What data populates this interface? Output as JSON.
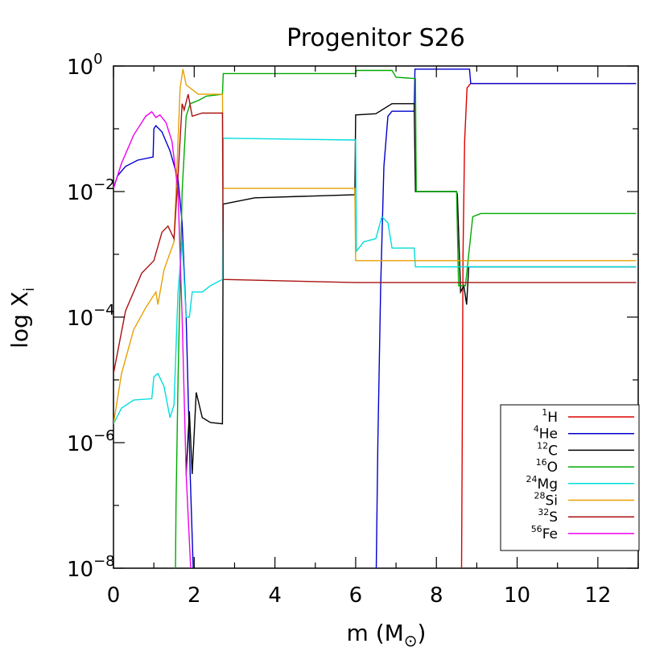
{
  "chart_data": {
    "type": "line",
    "title": "Progenitor S26",
    "xlabel": {
      "prefix": "m (M",
      "sub": "⊙",
      "suffix": ")"
    },
    "ylabel": {
      "base": "log X",
      "sub": "i"
    },
    "xlim": [
      0,
      13.0
    ],
    "ylim_log10": [
      -8,
      0
    ],
    "x_ticks": [
      0,
      2,
      4,
      6,
      8,
      10,
      12
    ],
    "x_tick_labels": [
      "0",
      "2",
      "4",
      "6",
      "8",
      "10",
      "12"
    ],
    "y_ticks_log10": [
      0,
      -2,
      -4,
      -6,
      -8
    ],
    "y_tick_labels": [
      {
        "base": "10",
        "exp": "0"
      },
      {
        "base": "10",
        "exp": "−2"
      },
      {
        "base": "10",
        "exp": "−4"
      },
      {
        "base": "10",
        "exp": "−6"
      },
      {
        "base": "10",
        "exp": "−8"
      }
    ],
    "legend_position": "bottom-right",
    "series": [
      {
        "name": "1H",
        "mass": "1",
        "element": "H",
        "color": "#dd0000",
        "points": [
          [
            8.62,
            -8.5
          ],
          [
            8.64,
            -6.0
          ],
          [
            8.66,
            -3.0
          ],
          [
            8.7,
            -1.2
          ],
          [
            8.76,
            -0.35
          ],
          [
            8.82,
            -0.3
          ],
          [
            8.85,
            -0.28
          ],
          [
            12.95,
            -0.28
          ]
        ]
      },
      {
        "name": "4He",
        "mass": "4",
        "element": "He",
        "color": "#0000cc",
        "points": [
          [
            0,
            -1.95
          ],
          [
            0.1,
            -1.75
          ],
          [
            0.3,
            -1.6
          ],
          [
            0.6,
            -1.5
          ],
          [
            0.98,
            -1.45
          ],
          [
            1.0,
            -1.0
          ],
          [
            1.05,
            -0.95
          ],
          [
            1.2,
            -1.05
          ],
          [
            1.4,
            -1.35
          ],
          [
            1.6,
            -1.8
          ],
          [
            1.7,
            -2.5
          ],
          [
            1.8,
            -4.0
          ],
          [
            1.9,
            -6.5
          ],
          [
            2.0,
            -8.5
          ],
          [
            6.5,
            -8.5
          ],
          [
            6.55,
            -6.0
          ],
          [
            6.62,
            -3.5
          ],
          [
            6.7,
            -1.6
          ],
          [
            6.8,
            -0.8
          ],
          [
            6.9,
            -0.72
          ],
          [
            7.45,
            -0.72
          ],
          [
            7.47,
            -0.05
          ],
          [
            8.82,
            -0.05
          ],
          [
            8.85,
            -0.28
          ],
          [
            12.95,
            -0.28
          ]
        ]
      },
      {
        "name": "12C",
        "mass": "12",
        "element": "C",
        "color": "#000000",
        "points": [
          [
            1.8,
            -6.5
          ],
          [
            1.88,
            -5.5
          ],
          [
            1.95,
            -6.5
          ],
          [
            2.05,
            -5.2
          ],
          [
            2.2,
            -5.6
          ],
          [
            2.4,
            -5.68
          ],
          [
            2.7,
            -5.7
          ],
          [
            2.72,
            -2.2
          ],
          [
            3.5,
            -2.1
          ],
          [
            5.98,
            -2.05
          ],
          [
            6.0,
            -0.78
          ],
          [
            6.5,
            -0.76
          ],
          [
            6.9,
            -0.6
          ],
          [
            7.45,
            -0.6
          ],
          [
            7.48,
            -2.0
          ],
          [
            8.5,
            -2.0
          ],
          [
            8.52,
            -2.05
          ],
          [
            8.6,
            -3.6
          ],
          [
            8.68,
            -3.5
          ],
          [
            8.75,
            -3.8
          ],
          [
            8.8,
            -3.2
          ],
          [
            12.95,
            -3.2
          ]
        ]
      },
      {
        "name": "16O",
        "mass": "16",
        "element": "O",
        "color": "#00aa00",
        "points": [
          [
            1.53,
            -8.5
          ],
          [
            1.55,
            -7.0
          ],
          [
            1.6,
            -5.0
          ],
          [
            1.7,
            -2.0
          ],
          [
            1.8,
            -0.8
          ],
          [
            1.9,
            -0.6
          ],
          [
            2.1,
            -0.55
          ],
          [
            2.3,
            -0.48
          ],
          [
            2.7,
            -0.45
          ],
          [
            2.72,
            -0.12
          ],
          [
            6.0,
            -0.12
          ],
          [
            6.02,
            -0.07
          ],
          [
            6.9,
            -0.07
          ],
          [
            7.0,
            -0.18
          ],
          [
            7.48,
            -0.2
          ],
          [
            7.5,
            -2.0
          ],
          [
            8.5,
            -2.0
          ],
          [
            8.55,
            -3.5
          ],
          [
            8.72,
            -3.5
          ],
          [
            8.8,
            -3.0
          ],
          [
            8.9,
            -2.4
          ],
          [
            9.1,
            -2.35
          ],
          [
            12.95,
            -2.35
          ]
        ]
      },
      {
        "name": "24Mg",
        "mass": "24",
        "element": "Mg",
        "color": "#00dddd",
        "points": [
          [
            0,
            -5.7
          ],
          [
            0.2,
            -5.45
          ],
          [
            0.5,
            -5.32
          ],
          [
            0.95,
            -5.3
          ],
          [
            1.0,
            -4.95
          ],
          [
            1.1,
            -4.9
          ],
          [
            1.25,
            -5.1
          ],
          [
            1.4,
            -5.6
          ],
          [
            1.5,
            -5.4
          ],
          [
            1.6,
            -3.6
          ],
          [
            1.7,
            -2.8
          ],
          [
            1.8,
            -4.0
          ],
          [
            1.88,
            -4.0
          ],
          [
            1.95,
            -3.6
          ],
          [
            2.2,
            -3.6
          ],
          [
            2.4,
            -3.5
          ],
          [
            2.7,
            -3.4
          ],
          [
            2.72,
            -1.15
          ],
          [
            6.0,
            -1.18
          ],
          [
            6.02,
            -2.95
          ],
          [
            6.2,
            -2.8
          ],
          [
            6.5,
            -2.75
          ],
          [
            6.65,
            -2.4
          ],
          [
            6.8,
            -2.5
          ],
          [
            6.9,
            -2.9
          ],
          [
            7.45,
            -2.9
          ],
          [
            7.48,
            -3.2
          ],
          [
            8.75,
            -3.2
          ],
          [
            8.8,
            -3.2
          ],
          [
            12.95,
            -3.2
          ]
        ]
      },
      {
        "name": "28Si",
        "mass": "28",
        "element": "Si",
        "color": "#e8a000",
        "points": [
          [
            0,
            -5.7
          ],
          [
            0.2,
            -4.9
          ],
          [
            0.5,
            -4.2
          ],
          [
            0.8,
            -3.85
          ],
          [
            1.05,
            -3.6
          ],
          [
            1.1,
            -3.8
          ],
          [
            1.25,
            -3.25
          ],
          [
            1.5,
            -2.8
          ],
          [
            1.65,
            -0.35
          ],
          [
            1.72,
            -0.05
          ],
          [
            1.8,
            -0.3
          ],
          [
            1.9,
            -0.35
          ],
          [
            2.1,
            -0.45
          ],
          [
            2.7,
            -0.45
          ],
          [
            2.72,
            -1.95
          ],
          [
            5.98,
            -1.95
          ],
          [
            6.0,
            -3.1
          ],
          [
            8.8,
            -3.1
          ],
          [
            12.95,
            -3.1
          ]
        ]
      },
      {
        "name": "32S",
        "mass": "32",
        "element": "S",
        "color": "#aa1111",
        "points": [
          [
            0,
            -4.9
          ],
          [
            0.3,
            -3.9
          ],
          [
            0.7,
            -3.3
          ],
          [
            1.0,
            -3.1
          ],
          [
            1.2,
            -2.65
          ],
          [
            1.35,
            -2.55
          ],
          [
            1.5,
            -2.75
          ],
          [
            1.6,
            -1.75
          ],
          [
            1.7,
            -0.6
          ],
          [
            1.75,
            -0.7
          ],
          [
            1.85,
            -0.45
          ],
          [
            1.95,
            -0.8
          ],
          [
            2.2,
            -0.75
          ],
          [
            2.7,
            -0.75
          ],
          [
            2.72,
            -3.4
          ],
          [
            6.0,
            -3.45
          ],
          [
            6.02,
            -3.45
          ],
          [
            12.95,
            -3.45
          ]
        ]
      },
      {
        "name": "56Fe",
        "mass": "56",
        "element": "Fe",
        "color": "#ee00ee",
        "points": [
          [
            0,
            -1.95
          ],
          [
            0.2,
            -1.55
          ],
          [
            0.5,
            -1.1
          ],
          [
            0.8,
            -0.8
          ],
          [
            0.95,
            -0.73
          ],
          [
            1.05,
            -0.82
          ],
          [
            1.15,
            -0.78
          ],
          [
            1.3,
            -0.9
          ],
          [
            1.45,
            -1.2
          ],
          [
            1.6,
            -2.0
          ],
          [
            1.7,
            -4.0
          ],
          [
            1.8,
            -6.5
          ],
          [
            1.95,
            -8.5
          ]
        ]
      }
    ]
  }
}
